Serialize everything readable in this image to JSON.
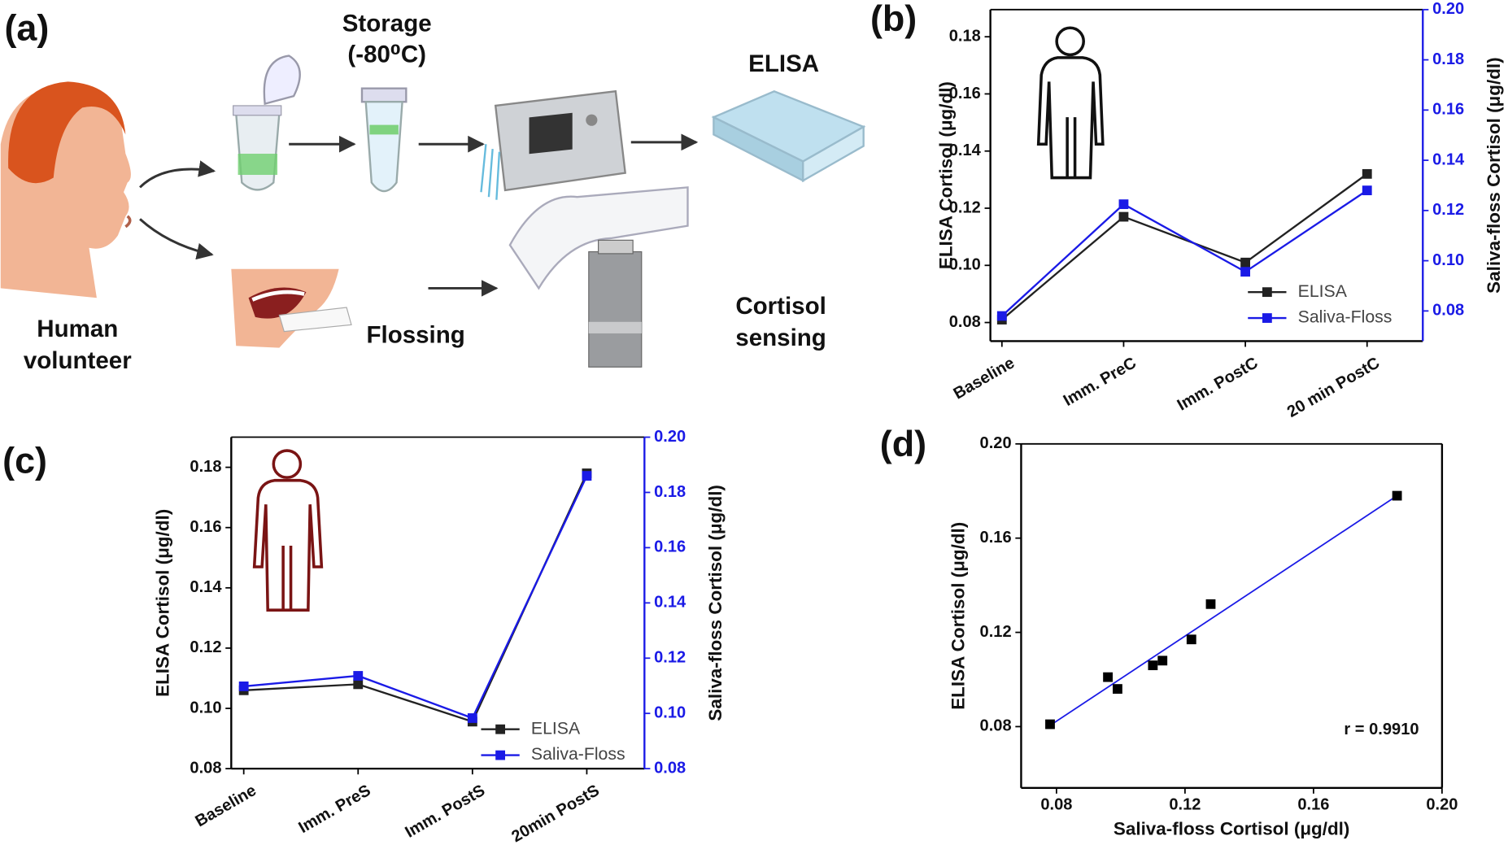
{
  "diagram": {
    "panel": "(a)",
    "storage": [
      "Storage",
      "(-80⁰C)"
    ],
    "elisa": "ELISA",
    "human_volunteer": [
      "Human",
      "volunteer"
    ],
    "flossing": "Flossing",
    "cortisol_sensing": [
      "Cortisol",
      "sensing"
    ]
  },
  "chart_data": [
    {
      "panel": "(b)",
      "type": "line",
      "categories": [
        "Baseline",
        "Imm. PreC",
        "Imm. PostC",
        "20 min PostC"
      ],
      "ylabel": "ELISA Cortisol (μg/dl)",
      "y2label": "Saliva-floss Cortisol (μg/dl)",
      "ylim": [
        0.0735,
        0.1895
      ],
      "yticks": [
        0.08,
        {
          "value": 0.1,
          "label": "0.10"
        },
        0.12,
        0.14,
        0.16,
        0.18
      ],
      "y2lim": [
        0.068,
        0.2
      ],
      "y2ticks": [
        0.08,
        {
          "value": 0.1,
          "label": "0.10"
        },
        0.12,
        0.14,
        0.16,
        0.18,
        {
          "value": 0.2,
          "label": "0.20"
        }
      ],
      "y2color": "#1a1ae6",
      "legend": "lower right",
      "series": [
        {
          "name": "ELISA",
          "color": "#222222",
          "values": [
            0.081,
            0.117,
            0.101,
            0.132
          ]
        },
        {
          "name": "Saliva-Floss",
          "color": "#1a1ae6",
          "axis": "y2",
          "values": [
            0.078,
            0.1225,
            0.0956,
            0.128
          ]
        }
      ]
    },
    {
      "panel": "(c)",
      "type": "line",
      "categories": [
        "Baseline",
        "Imm. PreS",
        "Imm. PostS",
        "20min PostS"
      ],
      "ylabel": "ELISA Cortisol (μg/dl)",
      "y2label": "Saliva-floss Cortisol (μg/dl)",
      "ylim": [
        0.08,
        0.19
      ],
      "yticks": [
        0.08,
        {
          "value": 0.1,
          "label": "0.10"
        },
        0.12,
        0.14,
        0.16,
        0.18
      ],
      "y2lim": [
        0.08,
        0.2
      ],
      "y2ticks": [
        0.08,
        {
          "value": 0.1,
          "label": "0.10"
        },
        0.12,
        0.14,
        0.16,
        0.18,
        {
          "value": 0.2,
          "label": "0.20"
        }
      ],
      "y2color": "#1a1ae6",
      "legend": "lower right",
      "series": [
        {
          "name": "ELISA",
          "color": "#222222",
          "values": [
            0.106,
            0.108,
            0.0956,
            0.178
          ]
        },
        {
          "name": "Saliva-Floss",
          "color": "#1a1ae6",
          "axis": "y2",
          "values": [
            0.1098,
            0.1136,
            0.0983,
            0.186
          ]
        }
      ]
    },
    {
      "panel": "(d)",
      "type": "scatter",
      "xlabel": "Saliva-floss Cortisol (μg/dl)",
      "ylabel": "ELISA Cortisol (μg/dl)",
      "x": [
        0.078,
        0.096,
        0.099,
        0.11,
        0.113,
        0.122,
        0.128,
        0.186
      ],
      "values": [
        0.081,
        0.101,
        0.096,
        0.106,
        0.108,
        0.117,
        0.132,
        0.178
      ],
      "color": "#000000",
      "fit": {
        "x": [
          0.078,
          0.186
        ],
        "values": [
          0.0805,
          0.178
        ],
        "color": "#1a1ae6"
      },
      "annotation": "r = 0.9910",
      "xlim": [
        0.069,
        0.2
      ],
      "xticks": [
        0.08,
        0.12,
        0.16,
        {
          "value": 0.2,
          "label": "0.20"
        }
      ],
      "ylim": [
        0.054,
        0.2
      ],
      "yticks": [
        0.08,
        0.12,
        0.16,
        {
          "value": 0.2,
          "label": "0.20"
        }
      ]
    }
  ]
}
